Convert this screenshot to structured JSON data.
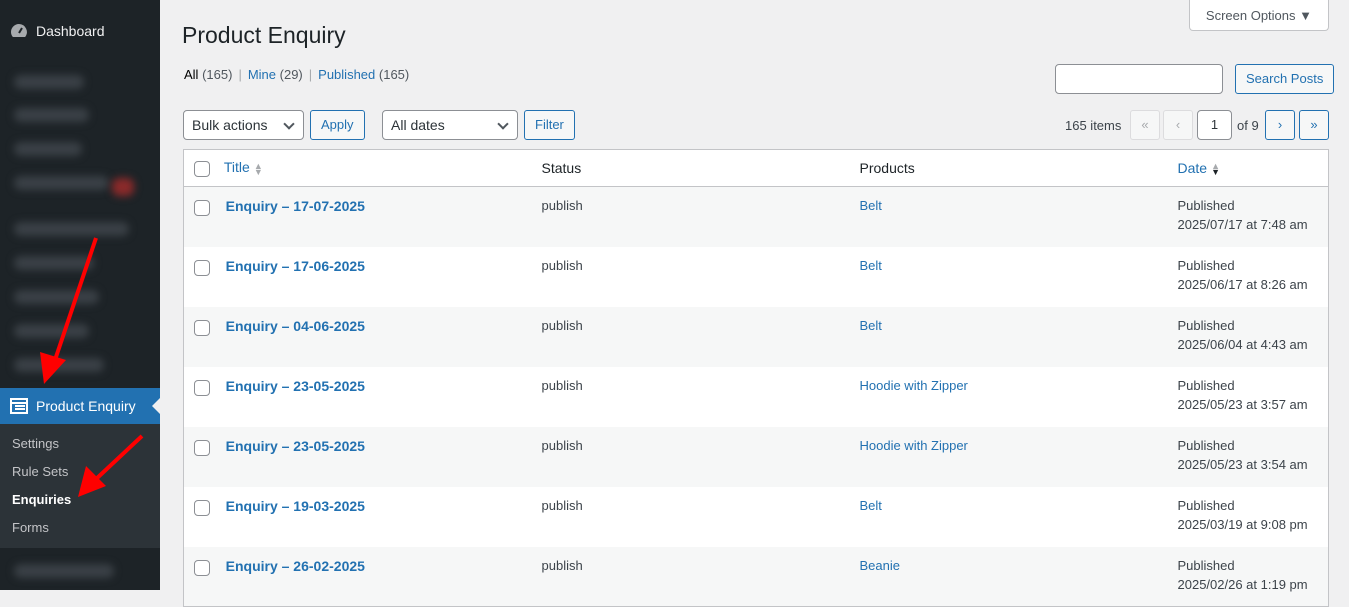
{
  "sidebar": {
    "dashboard": "Dashboard",
    "active_menu": "Product Enquiry",
    "submenu": [
      {
        "label": "Settings"
      },
      {
        "label": "Rule Sets"
      },
      {
        "label": "Enquiries",
        "current": true
      },
      {
        "label": "Forms"
      }
    ]
  },
  "header": {
    "title": "Product Enquiry",
    "screen_options": "Screen Options ▼"
  },
  "views": {
    "all": "All",
    "all_count": "(165)",
    "mine": "Mine",
    "mine_count": "(29)",
    "published": "Published",
    "published_count": "(165)"
  },
  "search": {
    "value": "",
    "button": "Search Posts"
  },
  "toolbar": {
    "bulk_actions": "Bulk actions",
    "apply": "Apply",
    "dates": "All dates",
    "filter": "Filter"
  },
  "pagination": {
    "items": "165 items",
    "first": "«",
    "prev": "‹",
    "current": "1",
    "of": "of 9",
    "next": "›",
    "last": "»"
  },
  "table": {
    "columns": [
      "Title",
      "Status",
      "Products",
      "Date"
    ],
    "rows": [
      {
        "title": "Enquiry – 17-07-2025",
        "status": "publish",
        "product": "Belt",
        "date_status": "Published",
        "date": "2025/07/17 at 7:48 am"
      },
      {
        "title": "Enquiry – 17-06-2025",
        "status": "publish",
        "product": "Belt",
        "date_status": "Published",
        "date": "2025/06/17 at 8:26 am"
      },
      {
        "title": "Enquiry – 04-06-2025",
        "status": "publish",
        "product": "Belt",
        "date_status": "Published",
        "date": "2025/06/04 at 4:43 am"
      },
      {
        "title": "Enquiry – 23-05-2025",
        "status": "publish",
        "product": "Hoodie with Zipper",
        "date_status": "Published",
        "date": "2025/05/23 at 3:57 am"
      },
      {
        "title": "Enquiry – 23-05-2025",
        "status": "publish",
        "product": "Hoodie with Zipper",
        "date_status": "Published",
        "date": "2025/05/23 at 3:54 am"
      },
      {
        "title": "Enquiry – 19-03-2025",
        "status": "publish",
        "product": "Belt",
        "date_status": "Published",
        "date": "2025/03/19 at 9:08 pm"
      },
      {
        "title": "Enquiry – 26-02-2025",
        "status": "publish",
        "product": "Beanie",
        "date_status": "Published",
        "date": "2025/02/26 at 1:19 pm"
      }
    ]
  },
  "colors": {
    "accent": "#2271b1",
    "sidebar": "#1d2327",
    "annotation": "#ff0000"
  }
}
